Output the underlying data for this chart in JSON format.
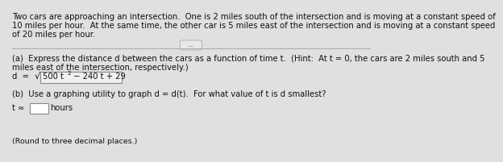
{
  "bg_color": "#e0e0e0",
  "intro_line1": "Two cars are approaching an intersection.  One is 2 miles south of the intersection and is moving at a constant speed of",
  "intro_line2": "10 miles per hour.  At the same time, the other car is 5 miles east of the intersection and is moving at a constant speed",
  "intro_line3": "of 20 miles per hour.",
  "separator_label": "...",
  "part_a_line1": "(a)  Express the distance d between the cars as a function of time t.  (Hint:  At t = 0, the cars are 2 miles south and 5",
  "part_a_line2": "miles east of the intersection, respectively.)",
  "formula_d": "d  = ",
  "formula_sqrt_sym": "√",
  "formula_inner": "500 t",
  "formula_sup": "2",
  "formula_tail": " − 240 t + 29",
  "part_b": "(b)  Use a graphing utility to graph d = d(t).  For what value of t is d smallest?",
  "t_approx": "t ≈",
  "hours": "hours",
  "round_note": "(Round to three decimal places.)",
  "text_color": "#111111",
  "font_size": 7.2,
  "small_font": 6.8,
  "box_edge_color": "#888888",
  "box_face_color": "#f0f0f0",
  "input_box_face": "#ffffff"
}
